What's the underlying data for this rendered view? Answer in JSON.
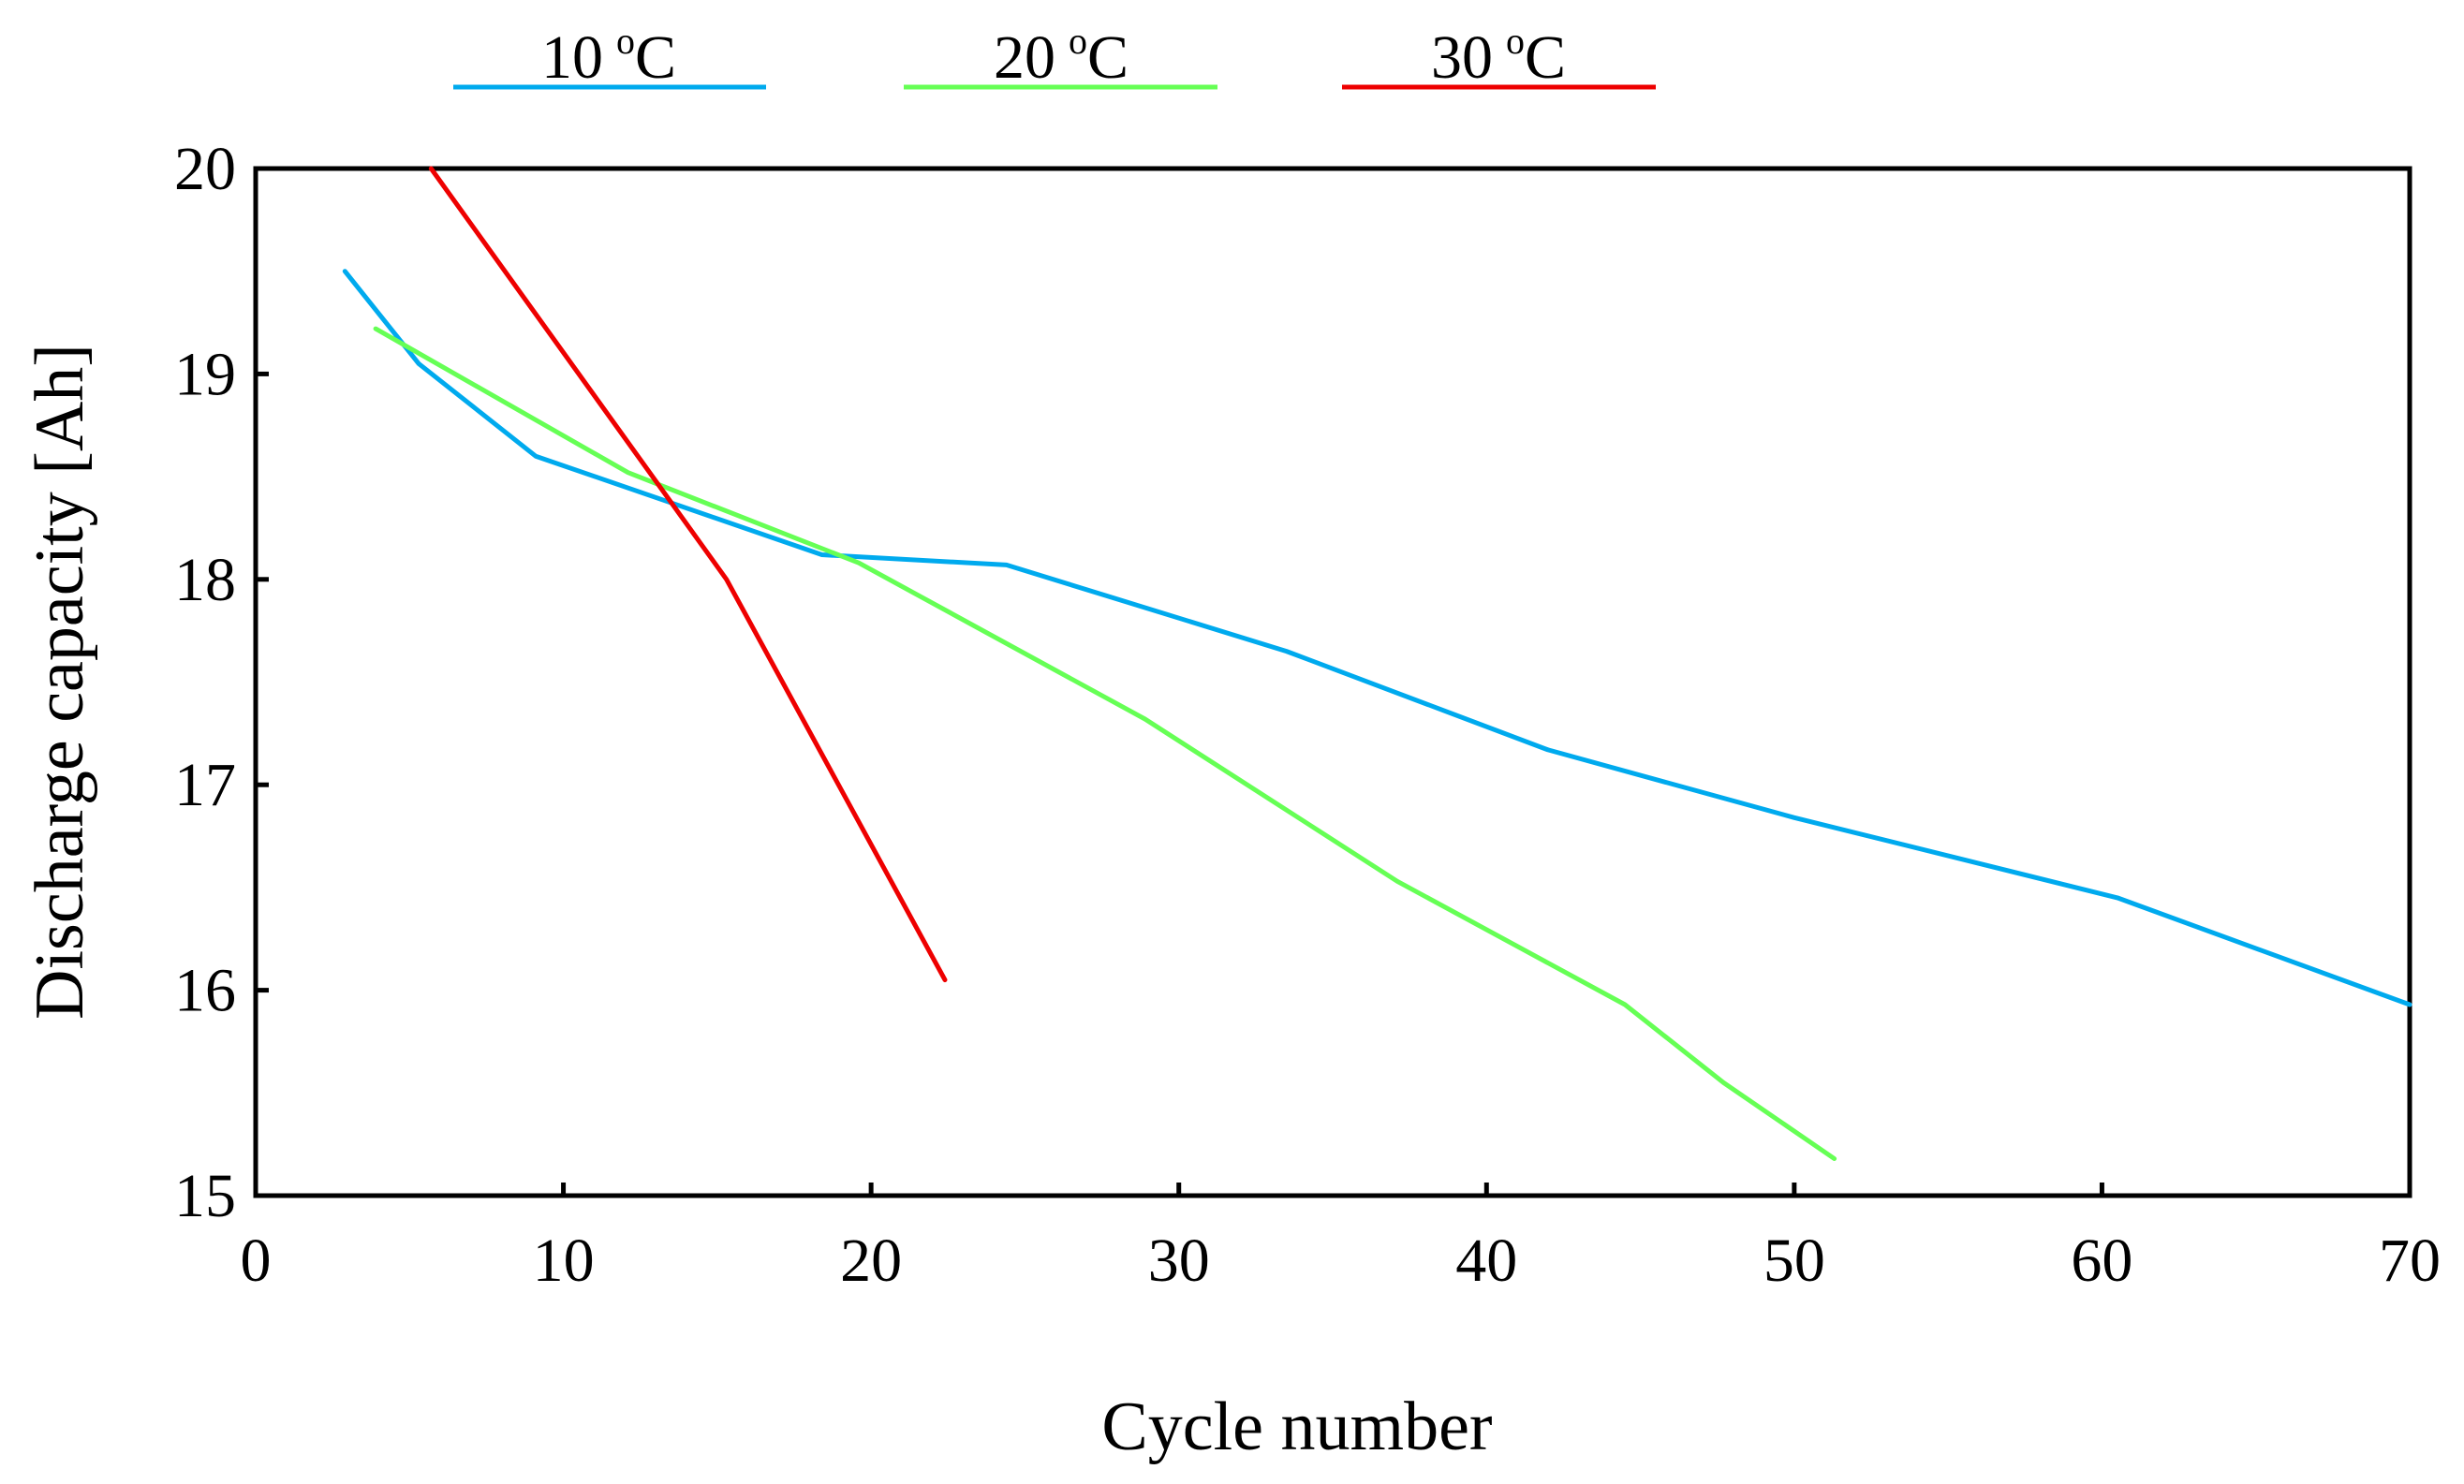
{
  "chart_data": {
    "type": "line",
    "title": "",
    "xlabel": "Cycle number",
    "ylabel": "Discharge capacity [Ah]",
    "xlim": [
      0,
      70
    ],
    "ylim": [
      15,
      20
    ],
    "xticks": [
      0,
      10,
      20,
      30,
      40,
      50,
      60,
      70
    ],
    "yticks": [
      15,
      16,
      17,
      18,
      19,
      20
    ],
    "xtick_labels": [
      "0",
      "10",
      "20",
      "30",
      "40",
      "50",
      "60",
      "70"
    ],
    "ytick_labels": [
      "15",
      "16",
      "17",
      "18",
      "19",
      "20"
    ],
    "grid": false,
    "legend_position": "top",
    "series": [
      {
        "name": "10 °C",
        "legend_number": "10",
        "legend_sup": "o",
        "legend_unit": "C",
        "color": "#00aaee",
        "x": [
          2.9,
          5.3,
          9.1,
          18.4,
          24.4,
          33.5,
          42.0,
          50.0,
          60.5,
          70.0
        ],
        "y": [
          19.5,
          19.05,
          18.6,
          18.12,
          18.07,
          17.65,
          17.17,
          16.84,
          16.45,
          15.93
        ]
      },
      {
        "name": "20 °C",
        "legend_number": "20",
        "legend_sup": "o",
        "legend_unit": "C",
        "color": "#66ff55",
        "x": [
          3.9,
          12.1,
          19.6,
          28.9,
          37.1,
          44.5,
          47.7,
          51.3
        ],
        "y": [
          19.22,
          18.52,
          18.08,
          17.32,
          16.53,
          15.93,
          15.55,
          15.18
        ]
      },
      {
        "name": "30 °C",
        "legend_number": "30",
        "legend_sup": "o",
        "legend_unit": "C",
        "color": "#ee0000",
        "x": [
          5.7,
          15.3,
          22.4
        ],
        "y": [
          20.0,
          18.0,
          16.05
        ]
      }
    ]
  }
}
